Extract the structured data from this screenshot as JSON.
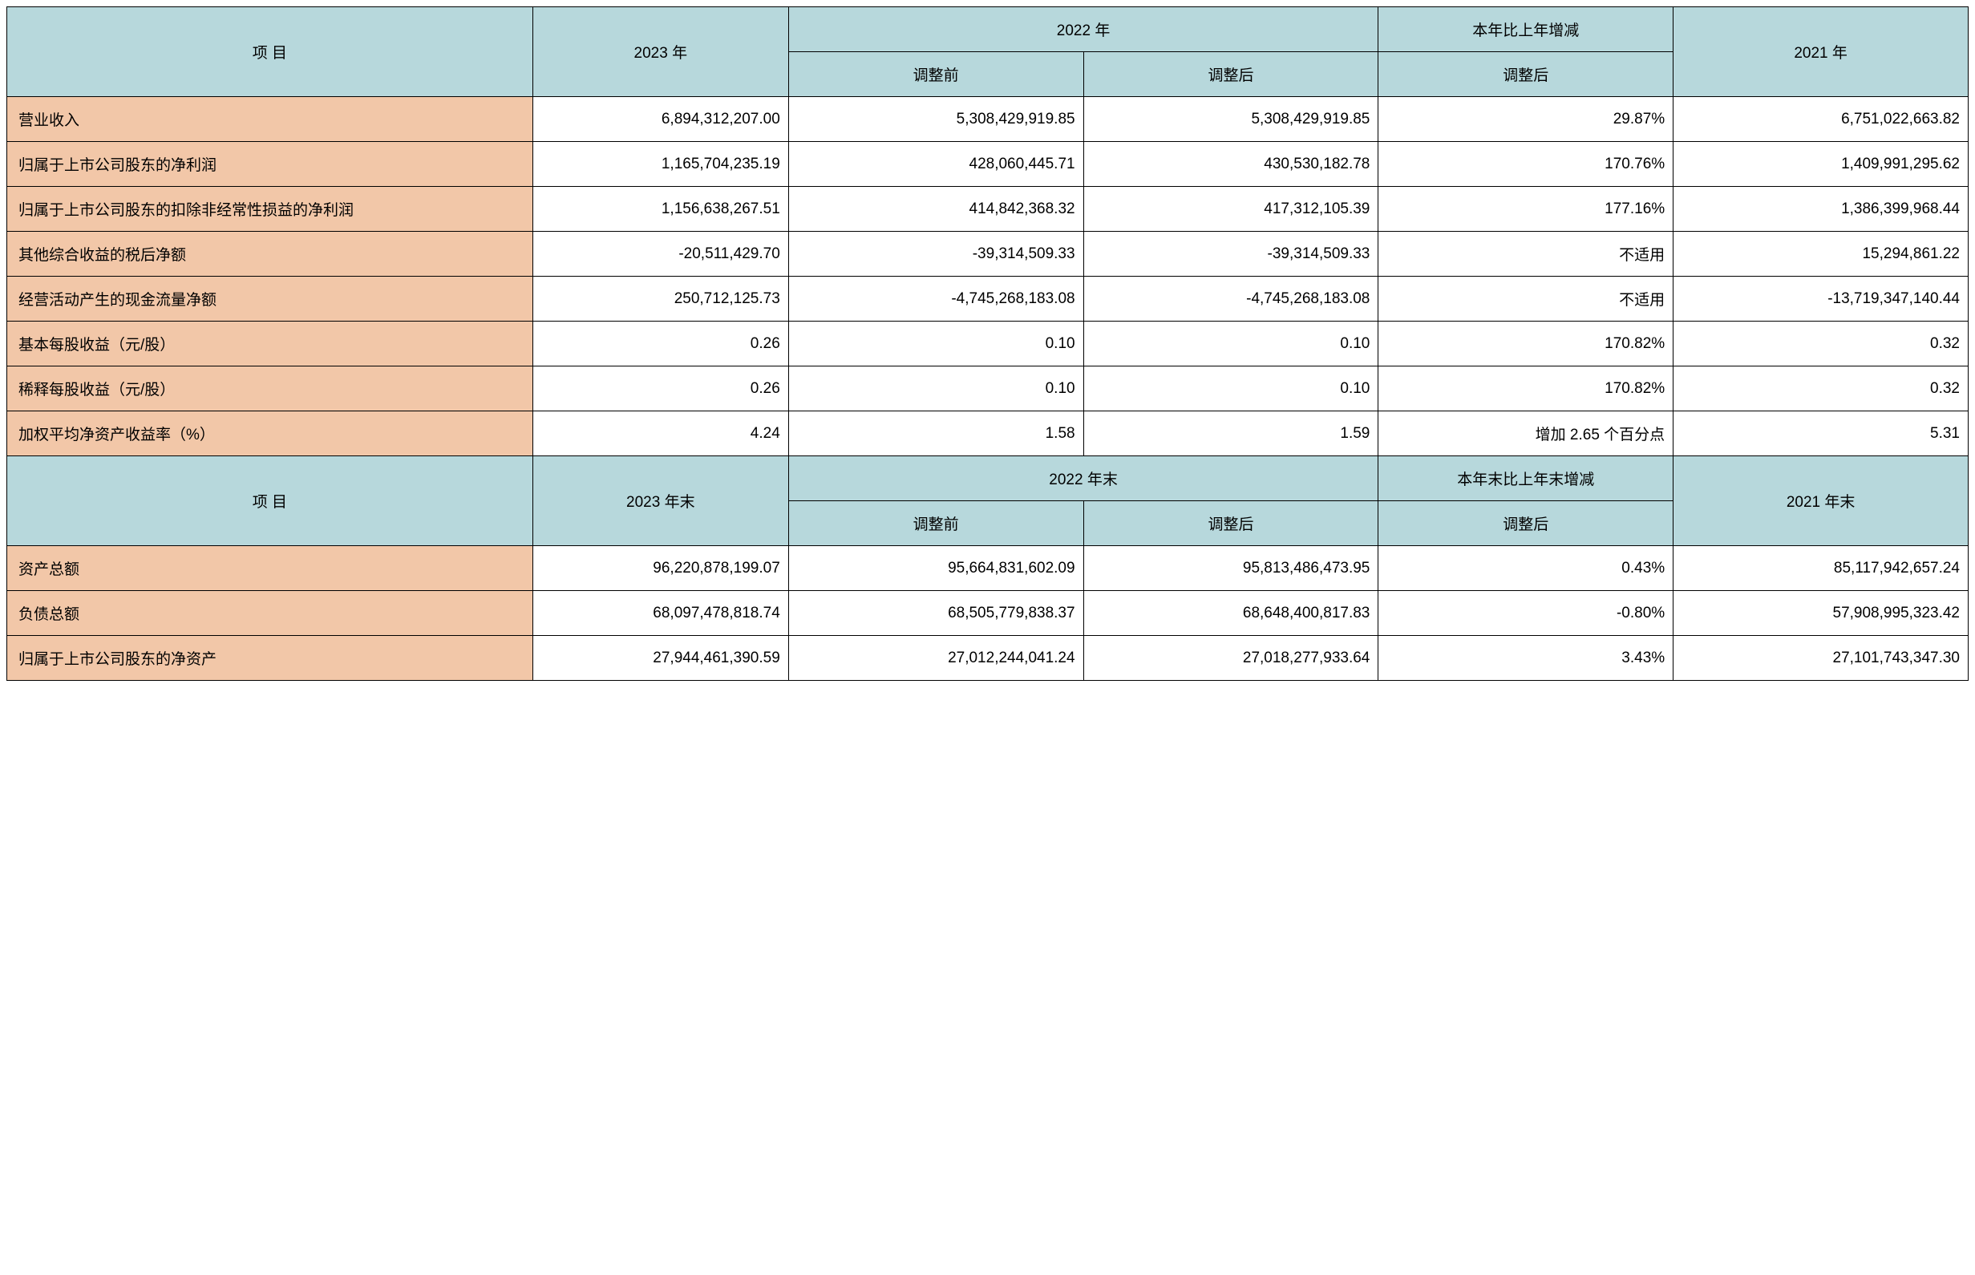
{
  "colors": {
    "header_bg": "#b7d8dc",
    "label_bg": "#f2c7a8",
    "value_bg": "#ffffff",
    "border": "#000000",
    "text": "#000000"
  },
  "typography": {
    "font_family": "Microsoft YaHei / SimSun",
    "font_size_pt": 14,
    "font_weight": "normal"
  },
  "table1": {
    "headers": {
      "item": "项   目",
      "y2023": "2023 年",
      "y2022": "2022 年",
      "y2022_pre": "调整前",
      "y2022_post": "调整后",
      "change": "本年比上年增减",
      "change_sub": "调整后",
      "y2021": "2021 年"
    },
    "rows": [
      {
        "label": "营业收入",
        "y2023": "6,894,312,207.00",
        "pre": "5,308,429,919.85",
        "post": "5,308,429,919.85",
        "change": "29.87%",
        "y2021": "6,751,022,663.82"
      },
      {
        "label": "归属于上市公司股东的净利润",
        "y2023": "1,165,704,235.19",
        "pre": "428,060,445.71",
        "post": "430,530,182.78",
        "change": "170.76%",
        "y2021": "1,409,991,295.62"
      },
      {
        "label": "归属于上市公司股东的扣除非经常性损益的净利润",
        "y2023": "1,156,638,267.51",
        "pre": "414,842,368.32",
        "post": "417,312,105.39",
        "change": "177.16%",
        "y2021": "1,386,399,968.44"
      },
      {
        "label": "其他综合收益的税后净额",
        "y2023": "-20,511,429.70",
        "pre": "-39,314,509.33",
        "post": "-39,314,509.33",
        "change": "不适用",
        "y2021": "15,294,861.22"
      },
      {
        "label": "经营活动产生的现金流量净额",
        "y2023": "250,712,125.73",
        "pre": "-4,745,268,183.08",
        "post": "-4,745,268,183.08",
        "change": "不适用",
        "y2021": "-13,719,347,140.44"
      },
      {
        "label": "基本每股收益（元/股）",
        "y2023": "0.26",
        "pre": "0.10",
        "post": "0.10",
        "change": "170.82%",
        "y2021": "0.32"
      },
      {
        "label": "稀释每股收益（元/股）",
        "y2023": "0.26",
        "pre": "0.10",
        "post": "0.10",
        "change": "170.82%",
        "y2021": "0.32"
      },
      {
        "label": "加权平均净资产收益率（%）",
        "y2023": "4.24",
        "pre": "1.58",
        "post": "1.59",
        "change": "增加 2.65  个百分点",
        "y2021": "5.31"
      }
    ]
  },
  "table2": {
    "headers": {
      "item": "项   目",
      "y2023": "2023 年末",
      "y2022": "2022 年末",
      "y2022_pre": "调整前",
      "y2022_post": "调整后",
      "change": "本年末比上年末增减",
      "change_sub": "调整后",
      "y2021": "2021 年末"
    },
    "rows": [
      {
        "label": "资产总额",
        "y2023": "96,220,878,199.07",
        "pre": "95,664,831,602.09",
        "post": "95,813,486,473.95",
        "change": "0.43%",
        "y2021": "85,117,942,657.24"
      },
      {
        "label": "负债总额",
        "y2023": "68,097,478,818.74",
        "pre": "68,505,779,838.37",
        "post": "68,648,400,817.83",
        "change": "-0.80%",
        "y2021": "57,908,995,323.42"
      },
      {
        "label": "归属于上市公司股东的净资产",
        "y2023": "27,944,461,390.59",
        "pre": "27,012,244,041.24",
        "post": "27,018,277,933.64",
        "change": "3.43%",
        "y2021": "27,101,743,347.30"
      }
    ]
  }
}
